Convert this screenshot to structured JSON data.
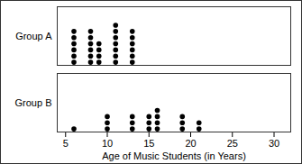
{
  "chart_data": {
    "type": "dot_plot",
    "x_label": "Age of Music Students (in Years)",
    "xlim": [
      4,
      32
    ],
    "xticks": [
      5,
      10,
      15,
      20,
      25,
      30
    ],
    "series": [
      {
        "name": "Group A",
        "color": "#000000",
        "values": [
          6,
          6,
          6,
          6,
          6,
          6,
          8,
          8,
          8,
          8,
          8,
          8,
          9,
          9,
          9,
          9,
          11,
          11,
          11,
          11,
          11,
          11,
          11,
          13,
          13,
          13,
          13,
          13,
          13
        ]
      },
      {
        "name": "Group B",
        "color": "#000000",
        "values": [
          6,
          10,
          10,
          10,
          13,
          13,
          13,
          15,
          15,
          15,
          16,
          16,
          16,
          16,
          19,
          19,
          19,
          21,
          21
        ]
      }
    ]
  }
}
